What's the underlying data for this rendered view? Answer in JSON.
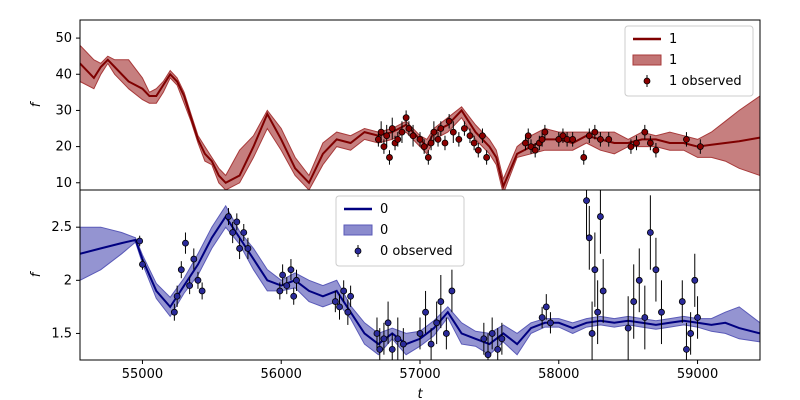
{
  "chart_data": [
    {
      "type": "line",
      "xlabel": "",
      "ylabel": "f",
      "xlim": [
        54550,
        59450
      ],
      "ylim": [
        8,
        55
      ],
      "yticks": [
        10,
        20,
        30,
        40,
        50
      ],
      "colors": {
        "line": "#7f0000",
        "band": "#a83a3a",
        "points": "#8b0000"
      },
      "legend": {
        "position": "top-right",
        "line_label": "1",
        "band_label": "1",
        "points_label": "1 observed"
      },
      "series": [
        {
          "kind": "line",
          "x": [
            54550,
            54650,
            54700,
            54750,
            54800,
            54900,
            55000,
            55050,
            55100,
            55150,
            55200,
            55250,
            55300,
            55350,
            55400,
            55450,
            55500,
            55550,
            55600,
            55700,
            55800,
            55900,
            56000,
            56100,
            56200,
            56300,
            56400,
            56500,
            56600,
            56700,
            56800,
            56900,
            57000,
            57050,
            57100,
            57200,
            57300,
            57400,
            57500,
            57550,
            57600,
            57700,
            57800,
            57900,
            58000,
            58100,
            58200,
            58300,
            58400,
            58500,
            58600,
            58700,
            58800,
            58900,
            59000,
            59100,
            59200,
            59300,
            59450
          ],
          "y": [
            43,
            39,
            42,
            44,
            42,
            38,
            36,
            34,
            34,
            37,
            40,
            38,
            34,
            28,
            22,
            18,
            16,
            12,
            10,
            12,
            20,
            29,
            22,
            14,
            10,
            18,
            22,
            21,
            24,
            23,
            24,
            26,
            22,
            20,
            24,
            26,
            30,
            24,
            20,
            17,
            9,
            18,
            20,
            22,
            22,
            21,
            23,
            22,
            21,
            21,
            22,
            22,
            21,
            21,
            20,
            20.5,
            21,
            21.5,
            22.5
          ]
        },
        {
          "kind": "band",
          "x": [
            54550,
            54650,
            54700,
            54750,
            54800,
            54900,
            55000,
            55050,
            55100,
            55150,
            55200,
            55250,
            55300,
            55350,
            55400,
            55450,
            55500,
            55550,
            55600,
            55700,
            55800,
            55900,
            56000,
            56100,
            56200,
            56300,
            56400,
            56500,
            56600,
            56700,
            56800,
            56900,
            57000,
            57050,
            57100,
            57200,
            57300,
            57400,
            57500,
            57550,
            57600,
            57700,
            57800,
            57900,
            58000,
            58100,
            58200,
            58300,
            58400,
            58500,
            58600,
            58700,
            58800,
            58900,
            59000,
            59100,
            59200,
            59300,
            59450
          ],
          "upper": [
            48,
            44,
            43,
            45,
            44,
            44,
            39,
            35,
            36,
            38,
            41,
            39,
            35,
            29,
            23,
            20,
            17,
            14,
            12,
            19,
            23,
            30,
            25,
            17,
            12,
            21,
            24,
            23,
            25,
            24,
            25,
            27,
            23,
            22,
            25,
            28,
            31,
            26,
            22,
            19,
            11,
            20,
            23,
            25,
            24,
            24,
            24,
            24,
            24,
            22,
            24,
            23,
            24,
            23,
            22,
            24,
            27,
            30,
            34
          ]
        },
        {
          "kind": "band_lower",
          "lower": [
            38,
            36,
            40,
            43,
            40,
            36,
            33,
            32,
            32,
            35,
            39,
            37,
            32,
            27,
            21,
            16,
            15,
            10,
            8,
            10,
            17,
            25,
            19,
            12,
            8,
            15,
            20,
            19,
            22,
            21,
            22,
            24,
            20,
            18,
            22,
            24,
            28,
            22,
            18,
            15,
            7,
            17,
            18,
            19,
            19,
            19,
            21,
            19,
            18,
            20,
            20,
            20,
            19,
            19,
            17,
            17,
            16,
            14,
            12
          ]
        }
      ],
      "observed": {
        "x": [
          56700,
          56720,
          56740,
          56760,
          56780,
          56800,
          56820,
          56840,
          56870,
          56900,
          56920,
          56950,
          57000,
          57030,
          57060,
          57080,
          57100,
          57130,
          57150,
          57180,
          57210,
          57240,
          57280,
          57320,
          57360,
          57390,
          57420,
          57450,
          57480,
          57760,
          57780,
          57800,
          57830,
          57860,
          57880,
          57900,
          58000,
          58030,
          58060,
          58100,
          58180,
          58220,
          58260,
          58300,
          58360,
          58520,
          58560,
          58620,
          58660,
          58700,
          58920,
          59020
        ],
        "y": [
          22,
          24,
          20,
          23,
          17,
          25,
          21,
          22,
          24,
          28,
          25,
          23,
          22,
          20,
          17,
          21,
          24,
          22,
          25,
          21,
          27,
          24,
          22,
          25,
          23,
          21,
          19,
          23,
          17,
          21,
          23,
          20,
          19,
          21,
          22,
          24,
          22,
          23,
          22,
          22,
          17,
          23,
          24,
          22,
          22,
          20,
          21,
          24,
          21,
          19,
          22,
          20
        ],
        "err": [
          2,
          3,
          2,
          3,
          2,
          3,
          2,
          2,
          3,
          2,
          2,
          3,
          2,
          2,
          2,
          2,
          3,
          2,
          2,
          2,
          2,
          3,
          2,
          2,
          2,
          2,
          2,
          2,
          2,
          2,
          2,
          2,
          2,
          2,
          2,
          2,
          2,
          2,
          2,
          2,
          2,
          2,
          2,
          2,
          2,
          2,
          2,
          2,
          2,
          2,
          2,
          2
        ]
      }
    },
    {
      "type": "line",
      "xlabel": "t",
      "ylabel": "f",
      "xlim": [
        54550,
        59450
      ],
      "ylim": [
        1.25,
        2.85
      ],
      "yticks": [
        1.5,
        2.0,
        2.5
      ],
      "xticks": [
        55000,
        56000,
        57000,
        58000,
        59000
      ],
      "colors": {
        "line": "#000080",
        "band": "#5a5ab8",
        "points": "#2a2a9a"
      },
      "legend": {
        "position": "top-center",
        "line_label": "0",
        "band_label": "0",
        "points_label": "0 observed"
      },
      "series": [
        {
          "kind": "line",
          "x": [
            54550,
            54700,
            54850,
            54950,
            55000,
            55100,
            55200,
            55300,
            55400,
            55500,
            55600,
            55700,
            55800,
            55900,
            56000,
            56100,
            56200,
            56300,
            56400,
            56500,
            56600,
            56700,
            56800,
            56900,
            57000,
            57100,
            57200,
            57300,
            57400,
            57500,
            57600,
            57700,
            57800,
            57900,
            58000,
            58100,
            58200,
            58300,
            58400,
            58500,
            58600,
            58700,
            58800,
            58900,
            59000,
            59100,
            59200,
            59300,
            59450
          ],
          "y": [
            2.25,
            2.3,
            2.35,
            2.38,
            2.2,
            1.9,
            1.75,
            1.95,
            2.15,
            2.4,
            2.6,
            2.4,
            2.2,
            2.0,
            1.95,
            2.0,
            1.9,
            1.85,
            1.9,
            1.7,
            1.5,
            1.4,
            1.5,
            1.4,
            1.45,
            1.55,
            1.7,
            1.5,
            1.45,
            1.4,
            1.5,
            1.4,
            1.55,
            1.6,
            1.6,
            1.55,
            1.6,
            1.62,
            1.6,
            1.62,
            1.6,
            1.58,
            1.6,
            1.62,
            1.6,
            1.58,
            1.6,
            1.55,
            1.5
          ]
        },
        {
          "kind": "band",
          "x": [
            54550,
            54700,
            54850,
            54950,
            55000,
            55100,
            55200,
            55300,
            55400,
            55500,
            55600,
            55700,
            55800,
            55900,
            56000,
            56100,
            56200,
            56300,
            56400,
            56500,
            56600,
            56700,
            56800,
            56900,
            57000,
            57100,
            57200,
            57300,
            57400,
            57500,
            57600,
            57700,
            57800,
            57900,
            58000,
            58100,
            58200,
            58300,
            58400,
            58500,
            58600,
            58700,
            58800,
            58900,
            59000,
            59100,
            59200,
            59300,
            59450
          ],
          "upper": [
            2.5,
            2.5,
            2.45,
            2.4,
            2.24,
            1.97,
            1.84,
            2.02,
            2.25,
            2.5,
            2.7,
            2.46,
            2.3,
            2.1,
            2.0,
            2.07,
            2.0,
            1.95,
            2.0,
            1.76,
            1.6,
            1.5,
            1.55,
            1.5,
            1.52,
            1.62,
            1.75,
            1.6,
            1.52,
            1.5,
            1.58,
            1.5,
            1.6,
            1.64,
            1.64,
            1.6,
            1.64,
            1.66,
            1.64,
            1.66,
            1.64,
            1.62,
            1.64,
            1.66,
            1.64,
            1.64,
            1.7,
            1.75,
            1.6
          ]
        },
        {
          "kind": "band_lower",
          "lower": [
            2.0,
            2.1,
            2.25,
            2.36,
            2.16,
            1.83,
            1.66,
            1.88,
            2.05,
            2.3,
            2.5,
            2.34,
            2.1,
            1.9,
            1.9,
            1.93,
            1.8,
            1.75,
            1.8,
            1.64,
            1.4,
            1.3,
            1.45,
            1.3,
            1.38,
            1.48,
            1.65,
            1.4,
            1.38,
            1.3,
            1.42,
            1.3,
            1.5,
            1.56,
            1.56,
            1.5,
            1.56,
            1.58,
            1.56,
            1.58,
            1.56,
            1.54,
            1.56,
            1.58,
            1.56,
            1.52,
            1.5,
            1.45,
            1.42
          ]
        }
      ],
      "observed": {
        "x": [
          54980,
          55000,
          55230,
          55250,
          55280,
          55310,
          55340,
          55370,
          55400,
          55430,
          55620,
          55650,
          55680,
          55700,
          55730,
          55760,
          55990,
          56010,
          56040,
          56070,
          56090,
          56110,
          56390,
          56420,
          56450,
          56480,
          56500,
          56690,
          56710,
          56740,
          56770,
          56800,
          56840,
          56880,
          57000,
          57040,
          57080,
          57120,
          57150,
          57190,
          57230,
          57460,
          57490,
          57520,
          57560,
          57590,
          57880,
          57910,
          57940,
          58200,
          58220,
          58240,
          58260,
          58280,
          58300,
          58320,
          58500,
          58540,
          58580,
          58620,
          58660,
          58700,
          58740,
          58890,
          58920,
          58950,
          58980,
          59000
        ],
        "y": [
          2.37,
          2.15,
          1.7,
          1.85,
          2.1,
          2.35,
          1.95,
          2.2,
          2.0,
          1.9,
          2.6,
          2.45,
          2.55,
          2.3,
          2.45,
          2.3,
          1.9,
          2.05,
          1.95,
          2.1,
          1.85,
          2.0,
          1.8,
          1.75,
          1.9,
          1.7,
          1.85,
          1.5,
          1.35,
          1.45,
          1.6,
          1.35,
          1.45,
          1.4,
          1.5,
          1.7,
          1.4,
          1.6,
          1.8,
          1.5,
          1.9,
          1.45,
          1.3,
          1.5,
          1.35,
          1.45,
          1.65,
          1.75,
          1.6,
          2.75,
          2.4,
          1.5,
          2.1,
          1.7,
          2.6,
          1.9,
          1.55,
          1.8,
          2.0,
          1.65,
          2.45,
          2.1,
          1.7,
          1.8,
          1.35,
          1.5,
          2.0,
          1.65
        ],
        "err": [
          0.05,
          0.05,
          0.08,
          0.1,
          0.08,
          0.1,
          0.08,
          0.1,
          0.08,
          0.08,
          0.08,
          0.1,
          0.08,
          0.1,
          0.08,
          0.1,
          0.08,
          0.1,
          0.08,
          0.1,
          0.08,
          0.1,
          0.1,
          0.12,
          0.1,
          0.12,
          0.1,
          0.15,
          0.2,
          0.15,
          0.2,
          0.15,
          0.2,
          0.15,
          0.15,
          0.2,
          0.15,
          0.2,
          0.25,
          0.15,
          0.2,
          0.15,
          0.2,
          0.15,
          0.2,
          0.15,
          0.1,
          0.12,
          0.1,
          0.35,
          0.3,
          0.3,
          0.35,
          0.3,
          0.35,
          0.3,
          0.3,
          0.35,
          0.3,
          0.3,
          0.35,
          0.3,
          0.3,
          0.2,
          0.25,
          0.2,
          0.25,
          0.2
        ]
      }
    }
  ]
}
